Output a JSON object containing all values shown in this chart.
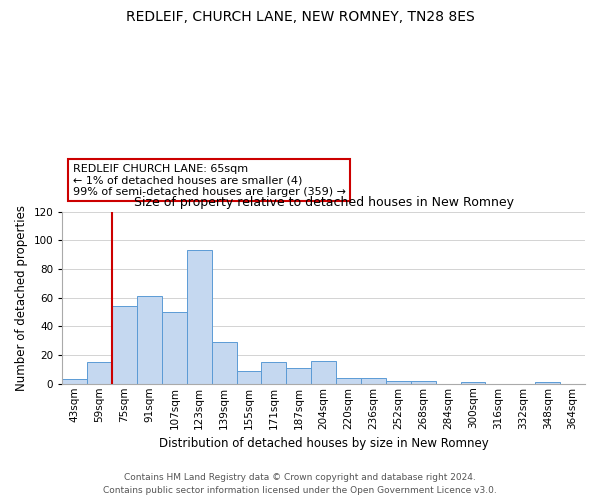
{
  "title": "REDLEIF, CHURCH LANE, NEW ROMNEY, TN28 8ES",
  "subtitle": "Size of property relative to detached houses in New Romney",
  "xlabel": "Distribution of detached houses by size in New Romney",
  "ylabel": "Number of detached properties",
  "categories": [
    "43sqm",
    "59sqm",
    "75sqm",
    "91sqm",
    "107sqm",
    "123sqm",
    "139sqm",
    "155sqm",
    "171sqm",
    "187sqm",
    "204sqm",
    "220sqm",
    "236sqm",
    "252sqm",
    "268sqm",
    "284sqm",
    "300sqm",
    "316sqm",
    "332sqm",
    "348sqm",
    "364sqm"
  ],
  "values": [
    3,
    15,
    54,
    61,
    50,
    93,
    29,
    9,
    15,
    11,
    16,
    4,
    4,
    2,
    2,
    0,
    1,
    0,
    0,
    1,
    0
  ],
  "bar_color": "#c5d8f0",
  "bar_edge_color": "#5b9bd5",
  "vline_color": "#cc0000",
  "vline_x_index": 1.5,
  "ylim": [
    0,
    120
  ],
  "yticks": [
    0,
    20,
    40,
    60,
    80,
    100,
    120
  ],
  "annotation_title": "REDLEIF CHURCH LANE: 65sqm",
  "annotation_line1": "← 1% of detached houses are smaller (4)",
  "annotation_line2": "99% of semi-detached houses are larger (359) →",
  "annotation_box_color": "#ffffff",
  "annotation_box_edge": "#cc0000",
  "footer1": "Contains HM Land Registry data © Crown copyright and database right 2024.",
  "footer2": "Contains public sector information licensed under the Open Government Licence v3.0.",
  "background_color": "#ffffff",
  "grid_color": "#cccccc",
  "title_fontsize": 10,
  "subtitle_fontsize": 9,
  "ylabel_fontsize": 8.5,
  "xlabel_fontsize": 8.5,
  "tick_fontsize": 7.5,
  "annotation_fontsize": 8,
  "footer_fontsize": 6.5
}
